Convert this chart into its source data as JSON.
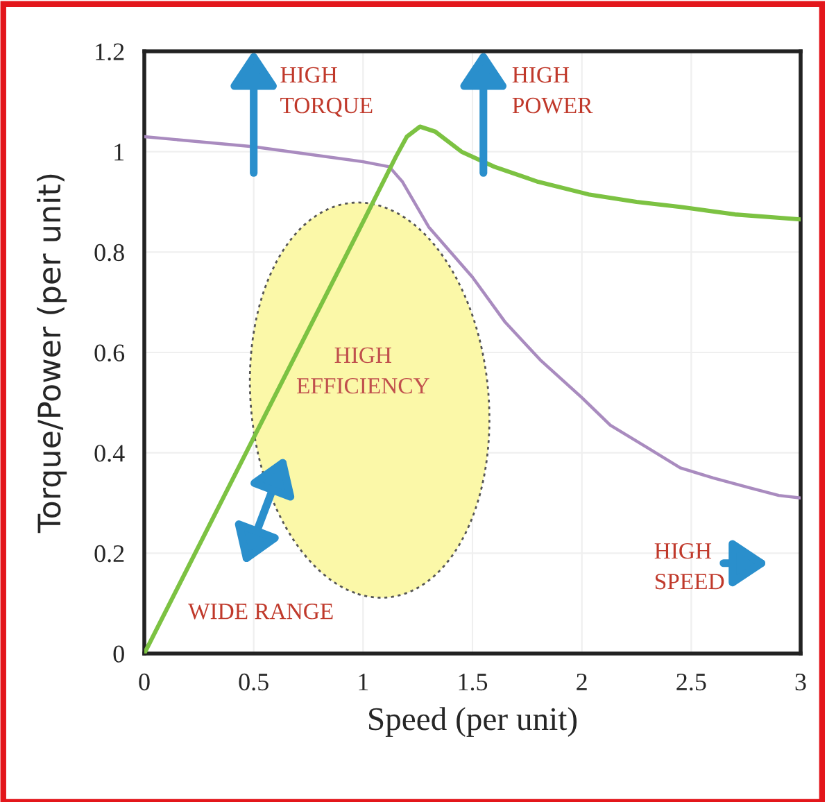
{
  "chart_data": {
    "type": "line",
    "xlabel": "Speed (per unit)",
    "ylabel": "Torque/Power (per unit)",
    "xlim": [
      0,
      3
    ],
    "xticks": [
      0,
      0.5,
      1,
      1.5,
      2,
      2.5,
      3
    ],
    "ylim": [
      0,
      1.2
    ],
    "yticks": [
      0,
      0.2,
      0.4,
      0.6,
      0.8,
      1,
      1.2
    ],
    "grid": true,
    "legend": false,
    "marker": "none",
    "line_style": "solid",
    "series": [
      {
        "color": "#a98bbf",
        "x": [
          0,
          0.5,
          1.0,
          1.12,
          1.18,
          1.3,
          1.5,
          1.65,
          1.81,
          2.0,
          2.13,
          2.3,
          2.45,
          2.6,
          2.77,
          2.9,
          3.0
        ],
        "values": [
          1.03,
          1.01,
          0.98,
          0.97,
          0.94,
          0.85,
          0.75,
          0.66,
          0.585,
          0.51,
          0.455,
          0.41,
          0.37,
          0.35,
          0.33,
          0.315,
          0.31
        ]
      },
      {
        "color": "#7cc242",
        "x": [
          0,
          0.5,
          1.0,
          1.15,
          1.2,
          1.26,
          1.33,
          1.45,
          1.6,
          1.8,
          2.03,
          2.25,
          2.45,
          2.7,
          3.0
        ],
        "values": [
          0,
          0.43,
          0.86,
          0.99,
          1.03,
          1.05,
          1.04,
          1.0,
          0.97,
          0.94,
          0.915,
          0.9,
          0.89,
          0.875,
          0.865
        ]
      }
    ],
    "annotations": [
      "HIGH\nTORQUE",
      "HIGH\nPOWER",
      "HIGH\nEFFICIENCY",
      "WIDE RANGE",
      "HIGH\nSPEED"
    ]
  }
}
